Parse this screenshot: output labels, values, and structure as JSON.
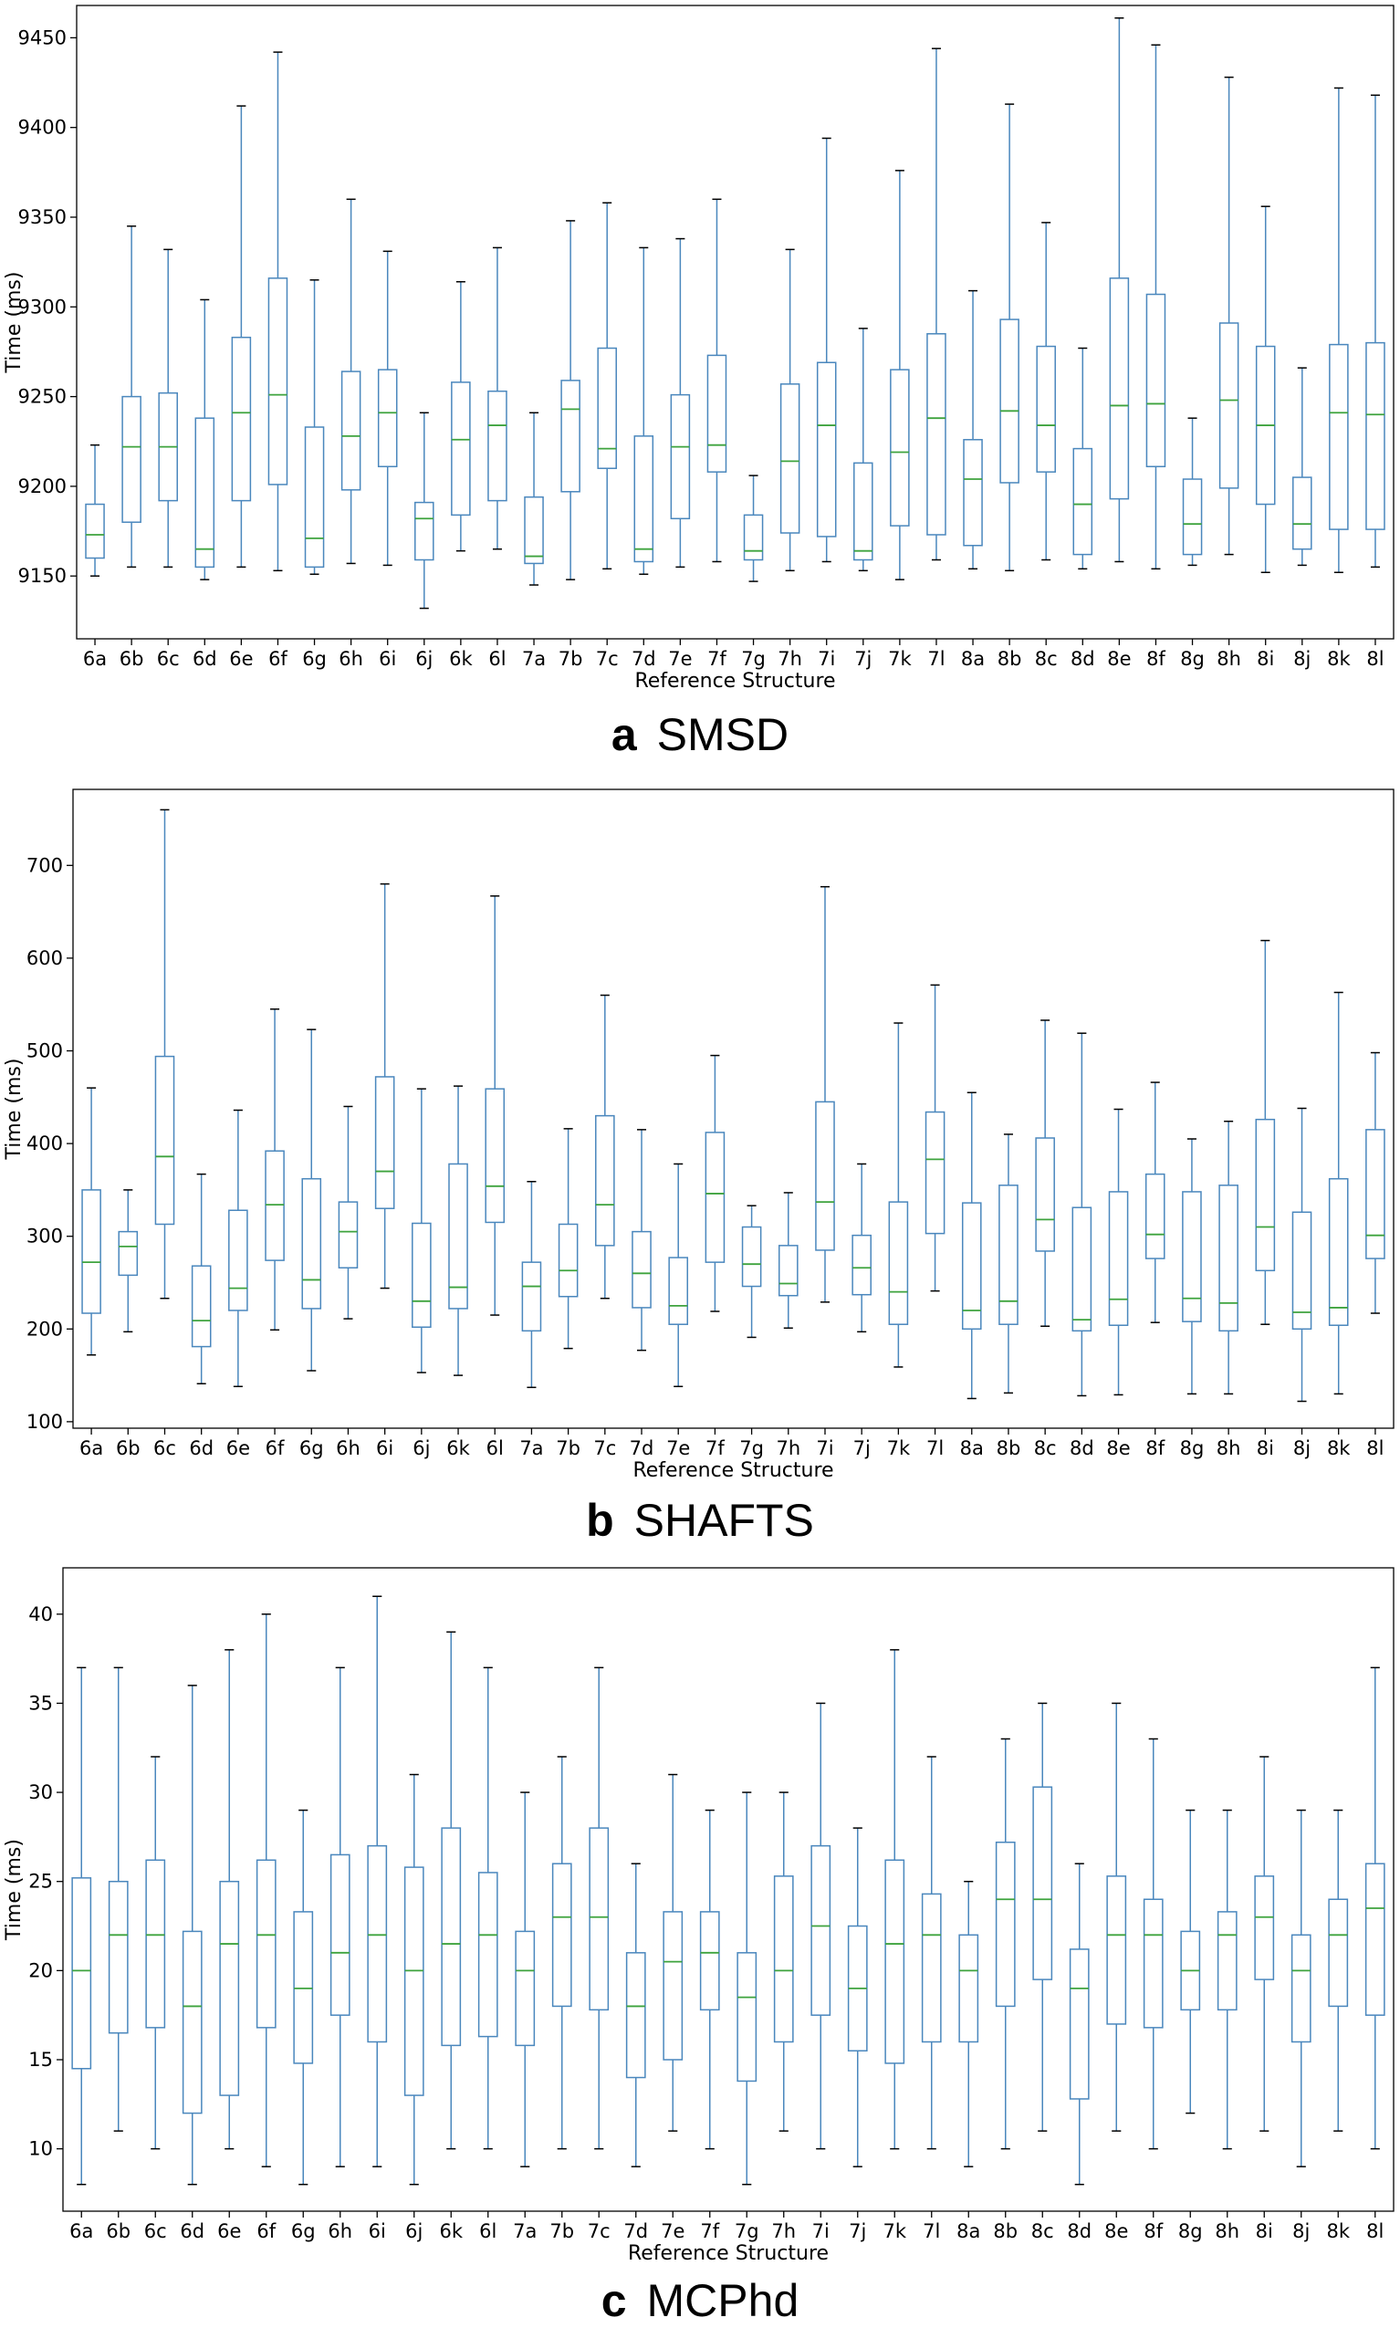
{
  "colors": {
    "box": "#4a87bd",
    "median": "#3ea33e",
    "axis": "#000000"
  },
  "chart_data": [
    {
      "type": "box",
      "panel_letter": "a",
      "panel_name": "SMSD",
      "xlabel": "Reference Structure",
      "ylabel": "Time (ms)",
      "ylim": [
        9115,
        9468
      ],
      "yticks": [
        9150,
        9200,
        9250,
        9300,
        9350,
        9400,
        9450
      ],
      "categories": [
        "6a",
        "6b",
        "6c",
        "6d",
        "6e",
        "6f",
        "6g",
        "6h",
        "6i",
        "6j",
        "6k",
        "6l",
        "7a",
        "7b",
        "7c",
        "7d",
        "7e",
        "7f",
        "7g",
        "7h",
        "7i",
        "7j",
        "7k",
        "7l",
        "8a",
        "8b",
        "8c",
        "8d",
        "8e",
        "8f",
        "8g",
        "8h",
        "8i",
        "8j",
        "8k",
        "8l"
      ],
      "boxes": [
        {
          "min": 9150,
          "q1": 9160,
          "median": 9173,
          "q3": 9190,
          "max": 9223
        },
        {
          "min": 9155,
          "q1": 9180,
          "median": 9222,
          "q3": 9250,
          "max": 9345
        },
        {
          "min": 9155,
          "q1": 9192,
          "median": 9222,
          "q3": 9252,
          "max": 9332
        },
        {
          "min": 9148,
          "q1": 9155,
          "median": 9165,
          "q3": 9238,
          "max": 9304
        },
        {
          "min": 9155,
          "q1": 9192,
          "median": 9241,
          "q3": 9283,
          "max": 9412
        },
        {
          "min": 9153,
          "q1": 9201,
          "median": 9251,
          "q3": 9316,
          "max": 9442
        },
        {
          "min": 9151,
          "q1": 9155,
          "median": 9171,
          "q3": 9233,
          "max": 9315
        },
        {
          "min": 9157,
          "q1": 9198,
          "median": 9228,
          "q3": 9264,
          "max": 9360
        },
        {
          "min": 9156,
          "q1": 9211,
          "median": 9241,
          "q3": 9265,
          "max": 9331
        },
        {
          "min": 9132,
          "q1": 9159,
          "median": 9182,
          "q3": 9191,
          "max": 9241
        },
        {
          "min": 9164,
          "q1": 9184,
          "median": 9226,
          "q3": 9258,
          "max": 9314
        },
        {
          "min": 9165,
          "q1": 9192,
          "median": 9234,
          "q3": 9253,
          "max": 9333
        },
        {
          "min": 9145,
          "q1": 9157,
          "median": 9161,
          "q3": 9194,
          "max": 9241
        },
        {
          "min": 9148,
          "q1": 9197,
          "median": 9243,
          "q3": 9259,
          "max": 9348
        },
        {
          "min": 9154,
          "q1": 9210,
          "median": 9221,
          "q3": 9277,
          "max": 9358
        },
        {
          "min": 9151,
          "q1": 9158,
          "median": 9165,
          "q3": 9228,
          "max": 9333
        },
        {
          "min": 9155,
          "q1": 9182,
          "median": 9222,
          "q3": 9251,
          "max": 9338
        },
        {
          "min": 9158,
          "q1": 9208,
          "median": 9223,
          "q3": 9273,
          "max": 9360
        },
        {
          "min": 9147,
          "q1": 9159,
          "median": 9164,
          "q3": 9184,
          "max": 9206
        },
        {
          "min": 9153,
          "q1": 9174,
          "median": 9214,
          "q3": 9257,
          "max": 9332
        },
        {
          "min": 9158,
          "q1": 9172,
          "median": 9234,
          "q3": 9269,
          "max": 9394
        },
        {
          "min": 9153,
          "q1": 9159,
          "median": 9164,
          "q3": 9213,
          "max": 9288
        },
        {
          "min": 9148,
          "q1": 9178,
          "median": 9219,
          "q3": 9265,
          "max": 9376
        },
        {
          "min": 9159,
          "q1": 9173,
          "median": 9238,
          "q3": 9285,
          "max": 9444
        },
        {
          "min": 9154,
          "q1": 9167,
          "median": 9204,
          "q3": 9226,
          "max": 9309
        },
        {
          "min": 9153,
          "q1": 9202,
          "median": 9242,
          "q3": 9293,
          "max": 9413
        },
        {
          "min": 9159,
          "q1": 9208,
          "median": 9234,
          "q3": 9278,
          "max": 9347
        },
        {
          "min": 9154,
          "q1": 9162,
          "median": 9190,
          "q3": 9221,
          "max": 9277
        },
        {
          "min": 9158,
          "q1": 9193,
          "median": 9245,
          "q3": 9316,
          "max": 9461
        },
        {
          "min": 9154,
          "q1": 9211,
          "median": 9246,
          "q3": 9307,
          "max": 9446
        },
        {
          "min": 9156,
          "q1": 9162,
          "median": 9179,
          "q3": 9204,
          "max": 9238
        },
        {
          "min": 9162,
          "q1": 9199,
          "median": 9248,
          "q3": 9291,
          "max": 9428
        },
        {
          "min": 9152,
          "q1": 9190,
          "median": 9234,
          "q3": 9278,
          "max": 9356
        },
        {
          "min": 9156,
          "q1": 9165,
          "median": 9179,
          "q3": 9205,
          "max": 9266
        },
        {
          "min": 9152,
          "q1": 9176,
          "median": 9241,
          "q3": 9279,
          "max": 9422
        },
        {
          "min": 9155,
          "q1": 9176,
          "median": 9240,
          "q3": 9280,
          "max": 9418
        }
      ]
    },
    {
      "type": "box",
      "panel_letter": "b",
      "panel_name": "SHAFTS",
      "xlabel": "Reference Structure",
      "ylabel": "Time (ms)",
      "ylim": [
        93,
        782
      ],
      "yticks": [
        100,
        200,
        300,
        400,
        500,
        600,
        700
      ],
      "categories": [
        "6a",
        "6b",
        "6c",
        "6d",
        "6e",
        "6f",
        "6g",
        "6h",
        "6i",
        "6j",
        "6k",
        "6l",
        "7a",
        "7b",
        "7c",
        "7d",
        "7e",
        "7f",
        "7g",
        "7h",
        "7i",
        "7j",
        "7k",
        "7l",
        "8a",
        "8b",
        "8c",
        "8d",
        "8e",
        "8f",
        "8g",
        "8h",
        "8i",
        "8j",
        "8k",
        "8l"
      ],
      "boxes": [
        {
          "min": 172,
          "q1": 217,
          "median": 272,
          "q3": 350,
          "max": 460
        },
        {
          "min": 197,
          "q1": 258,
          "median": 289,
          "q3": 305,
          "max": 350
        },
        {
          "min": 233,
          "q1": 313,
          "median": 386,
          "q3": 494,
          "max": 760
        },
        {
          "min": 141,
          "q1": 181,
          "median": 209,
          "q3": 268,
          "max": 367
        },
        {
          "min": 138,
          "q1": 220,
          "median": 244,
          "q3": 328,
          "max": 436
        },
        {
          "min": 199,
          "q1": 274,
          "median": 334,
          "q3": 392,
          "max": 545
        },
        {
          "min": 155,
          "q1": 222,
          "median": 253,
          "q3": 362,
          "max": 523
        },
        {
          "min": 211,
          "q1": 266,
          "median": 305,
          "q3": 337,
          "max": 440
        },
        {
          "min": 244,
          "q1": 330,
          "median": 370,
          "q3": 472,
          "max": 680
        },
        {
          "min": 153,
          "q1": 202,
          "median": 230,
          "q3": 314,
          "max": 459
        },
        {
          "min": 150,
          "q1": 222,
          "median": 245,
          "q3": 378,
          "max": 462
        },
        {
          "min": 215,
          "q1": 315,
          "median": 354,
          "q3": 459,
          "max": 667
        },
        {
          "min": 137,
          "q1": 198,
          "median": 246,
          "q3": 272,
          "max": 359
        },
        {
          "min": 179,
          "q1": 235,
          "median": 263,
          "q3": 313,
          "max": 416
        },
        {
          "min": 233,
          "q1": 290,
          "median": 334,
          "q3": 430,
          "max": 560
        },
        {
          "min": 177,
          "q1": 223,
          "median": 260,
          "q3": 305,
          "max": 415
        },
        {
          "min": 138,
          "q1": 205,
          "median": 225,
          "q3": 277,
          "max": 378
        },
        {
          "min": 219,
          "q1": 272,
          "median": 346,
          "q3": 412,
          "max": 495
        },
        {
          "min": 191,
          "q1": 246,
          "median": 270,
          "q3": 310,
          "max": 333
        },
        {
          "min": 201,
          "q1": 236,
          "median": 249,
          "q3": 290,
          "max": 347
        },
        {
          "min": 229,
          "q1": 285,
          "median": 337,
          "q3": 445,
          "max": 677
        },
        {
          "min": 197,
          "q1": 237,
          "median": 266,
          "q3": 301,
          "max": 378
        },
        {
          "min": 159,
          "q1": 205,
          "median": 240,
          "q3": 337,
          "max": 530
        },
        {
          "min": 241,
          "q1": 303,
          "median": 383,
          "q3": 434,
          "max": 571
        },
        {
          "min": 125,
          "q1": 200,
          "median": 220,
          "q3": 336,
          "max": 455
        },
        {
          "min": 131,
          "q1": 205,
          "median": 230,
          "q3": 355,
          "max": 410
        },
        {
          "min": 203,
          "q1": 284,
          "median": 318,
          "q3": 406,
          "max": 533
        },
        {
          "min": 128,
          "q1": 198,
          "median": 210,
          "q3": 331,
          "max": 519
        },
        {
          "min": 129,
          "q1": 204,
          "median": 232,
          "q3": 348,
          "max": 437
        },
        {
          "min": 207,
          "q1": 276,
          "median": 302,
          "q3": 367,
          "max": 466
        },
        {
          "min": 130,
          "q1": 208,
          "median": 233,
          "q3": 348,
          "max": 405
        },
        {
          "min": 130,
          "q1": 198,
          "median": 228,
          "q3": 355,
          "max": 424
        },
        {
          "min": 205,
          "q1": 263,
          "median": 310,
          "q3": 426,
          "max": 619
        },
        {
          "min": 122,
          "q1": 200,
          "median": 218,
          "q3": 326,
          "max": 438
        },
        {
          "min": 130,
          "q1": 204,
          "median": 223,
          "q3": 362,
          "max": 563
        },
        {
          "min": 217,
          "q1": 276,
          "median": 301,
          "q3": 415,
          "max": 498
        }
      ]
    },
    {
      "type": "box",
      "panel_letter": "c",
      "panel_name": "MCPhd",
      "xlabel": "Reference Structure",
      "ylabel": "Time (ms)",
      "ylim": [
        6.5,
        42.6
      ],
      "yticks": [
        10,
        15,
        20,
        25,
        30,
        35,
        40
      ],
      "categories": [
        "6a",
        "6b",
        "6c",
        "6d",
        "6e",
        "6f",
        "6g",
        "6h",
        "6i",
        "6j",
        "6k",
        "6l",
        "7a",
        "7b",
        "7c",
        "7d",
        "7e",
        "7f",
        "7g",
        "7h",
        "7i",
        "7j",
        "7k",
        "7l",
        "8a",
        "8b",
        "8c",
        "8d",
        "8e",
        "8f",
        "8g",
        "8h",
        "8i",
        "8j",
        "8k",
        "8l"
      ],
      "boxes": [
        {
          "min": 8,
          "q1": 14.5,
          "median": 20,
          "q3": 25.2,
          "max": 37
        },
        {
          "min": 11,
          "q1": 16.5,
          "median": 22,
          "q3": 25,
          "max": 37
        },
        {
          "min": 10,
          "q1": 16.8,
          "median": 22,
          "q3": 26.2,
          "max": 32
        },
        {
          "min": 8,
          "q1": 12,
          "median": 18,
          "q3": 22.2,
          "max": 36
        },
        {
          "min": 10,
          "q1": 13,
          "median": 21.5,
          "q3": 25,
          "max": 38
        },
        {
          "min": 9,
          "q1": 16.8,
          "median": 22,
          "q3": 26.2,
          "max": 40
        },
        {
          "min": 8,
          "q1": 14.8,
          "median": 19,
          "q3": 23.3,
          "max": 29
        },
        {
          "min": 9,
          "q1": 17.5,
          "median": 21,
          "q3": 26.5,
          "max": 37
        },
        {
          "min": 9,
          "q1": 16,
          "median": 22,
          "q3": 27,
          "max": 41
        },
        {
          "min": 8,
          "q1": 13,
          "median": 20,
          "q3": 25.8,
          "max": 31
        },
        {
          "min": 10,
          "q1": 15.8,
          "median": 21.5,
          "q3": 28,
          "max": 39
        },
        {
          "min": 10,
          "q1": 16.3,
          "median": 22,
          "q3": 25.5,
          "max": 37
        },
        {
          "min": 9,
          "q1": 15.8,
          "median": 20,
          "q3": 22.2,
          "max": 30
        },
        {
          "min": 10,
          "q1": 18,
          "median": 23,
          "q3": 26,
          "max": 32
        },
        {
          "min": 10,
          "q1": 17.8,
          "median": 23,
          "q3": 28,
          "max": 37
        },
        {
          "min": 9,
          "q1": 14,
          "median": 18,
          "q3": 21,
          "max": 26
        },
        {
          "min": 11,
          "q1": 15,
          "median": 20.5,
          "q3": 23.3,
          "max": 31
        },
        {
          "min": 10,
          "q1": 17.8,
          "median": 21,
          "q3": 23.3,
          "max": 29
        },
        {
          "min": 8,
          "q1": 13.8,
          "median": 18.5,
          "q3": 21,
          "max": 30
        },
        {
          "min": 11,
          "q1": 16,
          "median": 20,
          "q3": 25.3,
          "max": 30
        },
        {
          "min": 10,
          "q1": 17.5,
          "median": 22.5,
          "q3": 27,
          "max": 35
        },
        {
          "min": 9,
          "q1": 15.5,
          "median": 19,
          "q3": 22.5,
          "max": 28
        },
        {
          "min": 10,
          "q1": 14.8,
          "median": 21.5,
          "q3": 26.2,
          "max": 38
        },
        {
          "min": 10,
          "q1": 16,
          "median": 22,
          "q3": 24.3,
          "max": 32
        },
        {
          "min": 9,
          "q1": 16,
          "median": 20,
          "q3": 22,
          "max": 25
        },
        {
          "min": 10,
          "q1": 18,
          "median": 24,
          "q3": 27.2,
          "max": 33
        },
        {
          "min": 11,
          "q1": 19.5,
          "median": 24,
          "q3": 30.3,
          "max": 35
        },
        {
          "min": 8,
          "q1": 12.8,
          "median": 19,
          "q3": 21.2,
          "max": 26
        },
        {
          "min": 11,
          "q1": 17,
          "median": 22,
          "q3": 25.3,
          "max": 35
        },
        {
          "min": 10,
          "q1": 16.8,
          "median": 22,
          "q3": 24,
          "max": 33
        },
        {
          "min": 12,
          "q1": 17.8,
          "median": 20,
          "q3": 22.2,
          "max": 29
        },
        {
          "min": 10,
          "q1": 17.8,
          "median": 22,
          "q3": 23.3,
          "max": 29
        },
        {
          "min": 11,
          "q1": 19.5,
          "median": 23,
          "q3": 25.3,
          "max": 32
        },
        {
          "min": 9,
          "q1": 16,
          "median": 20,
          "q3": 22,
          "max": 29
        },
        {
          "min": 11,
          "q1": 18,
          "median": 22,
          "q3": 24,
          "max": 29
        },
        {
          "min": 10,
          "q1": 17.5,
          "median": 23.5,
          "q3": 26,
          "max": 37
        }
      ]
    }
  ]
}
